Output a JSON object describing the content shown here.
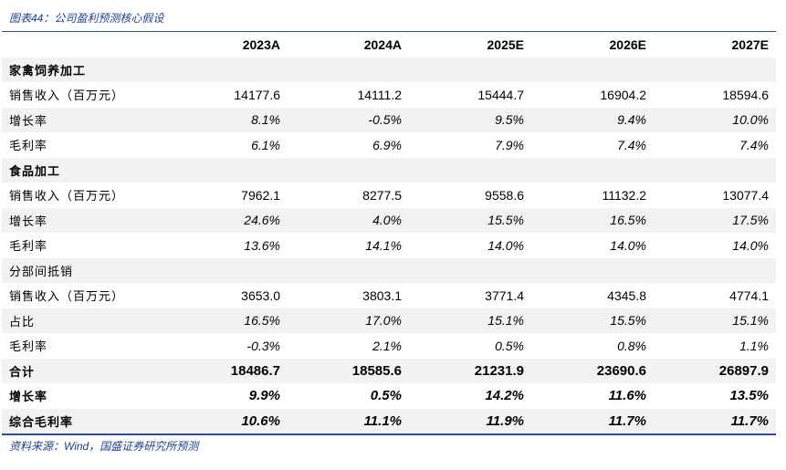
{
  "caption": "图表44：公司盈利预测核心假设",
  "source": "资料来源：Wind，国盛证券研究所预测",
  "columns": [
    "",
    "2023A",
    "2024A",
    "2025E",
    "2026E",
    "2027E"
  ],
  "rows": [
    {
      "label": "家禽饲养加工",
      "type": "section",
      "values": []
    },
    {
      "label": "销售收入（百万元）",
      "type": "number",
      "values": [
        "14177.6",
        "14111.2",
        "15444.7",
        "16904.2",
        "18594.6"
      ]
    },
    {
      "label": "增长率",
      "type": "pct",
      "values": [
        "8.1%",
        "-0.5%",
        "9.5%",
        "9.4%",
        "10.0%"
      ]
    },
    {
      "label": "毛利率",
      "type": "pct",
      "values": [
        "6.1%",
        "6.9%",
        "7.9%",
        "7.4%",
        "7.4%"
      ]
    },
    {
      "label": "食品加工",
      "type": "section",
      "values": []
    },
    {
      "label": "销售收入（百万元）",
      "type": "number",
      "values": [
        "7962.1",
        "8277.5",
        "9558.6",
        "11132.2",
        "13077.4"
      ]
    },
    {
      "label": "增长率",
      "type": "pct",
      "values": [
        "24.6%",
        "4.0%",
        "15.5%",
        "16.5%",
        "17.5%"
      ]
    },
    {
      "label": "毛利率",
      "type": "pct",
      "values": [
        "13.6%",
        "14.1%",
        "14.0%",
        "14.0%",
        "14.0%"
      ]
    },
    {
      "label": "分部间抵销",
      "type": "section-plain",
      "values": []
    },
    {
      "label": "销售收入（百万元）",
      "type": "number",
      "values": [
        "3653.0",
        "3803.1",
        "3771.4",
        "4345.8",
        "4774.1"
      ]
    },
    {
      "label": "占比",
      "type": "pct",
      "values": [
        "16.5%",
        "17.0%",
        "15.1%",
        "15.5%",
        "15.1%"
      ]
    },
    {
      "label": "毛利率",
      "type": "pct",
      "values": [
        "-0.3%",
        "2.1%",
        "0.5%",
        "0.8%",
        "1.1%"
      ]
    },
    {
      "label": "合计",
      "type": "bold",
      "values": [
        "18486.7",
        "18585.6",
        "21231.9",
        "23690.6",
        "26897.9"
      ]
    },
    {
      "label": "增长率",
      "type": "bold-pct",
      "values": [
        "9.9%",
        "0.5%",
        "14.2%",
        "11.6%",
        "13.5%"
      ]
    },
    {
      "label": "综合毛利率",
      "type": "bold-pct",
      "values": [
        "10.6%",
        "11.1%",
        "11.9%",
        "11.7%",
        "11.7%"
      ]
    }
  ]
}
